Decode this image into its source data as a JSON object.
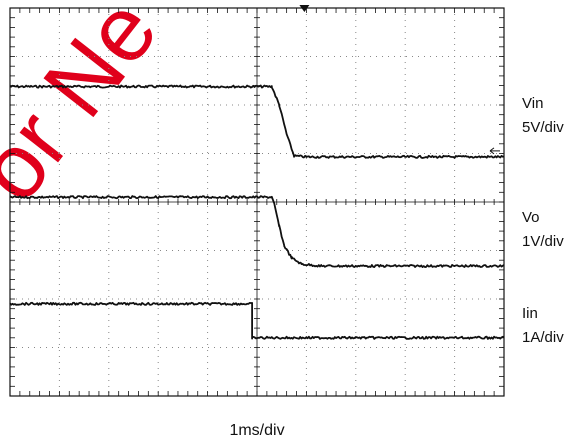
{
  "chart_data": {
    "type": "line",
    "title": "",
    "xlabel": "1ms/div",
    "ylabel": "",
    "grid": true,
    "grid_divisions": {
      "x": 10,
      "y": 8
    },
    "xlim": [
      0,
      10
    ],
    "ylim": [
      0,
      8
    ],
    "x_units": "divisions",
    "y_units": "divisions",
    "trigger_time_div": 6.0,
    "step_time_div": 5.3,
    "watermark": {
      "text": "For Ne",
      "color": "#e0001b"
    },
    "colors": {
      "trace": "#111111",
      "grid": "#888888",
      "frame": "#111111",
      "watermark": "#e0001b"
    },
    "series": [
      {
        "name": "Vin",
        "scale_label": "5V/div",
        "points": [
          [
            0,
            6.38
          ],
          [
            5.3,
            6.38
          ],
          [
            5.45,
            6.0
          ],
          [
            5.6,
            5.4
          ],
          [
            5.75,
            4.95
          ],
          [
            6,
            4.93
          ],
          [
            10,
            4.93
          ]
        ]
      },
      {
        "name": "Vo",
        "scale_label": "1V/div",
        "points": [
          [
            0,
            4.1
          ],
          [
            5.3,
            4.1
          ],
          [
            5.35,
            3.95
          ],
          [
            5.45,
            3.5
          ],
          [
            5.55,
            3.1
          ],
          [
            5.7,
            2.85
          ],
          [
            5.9,
            2.72
          ],
          [
            6.3,
            2.68
          ],
          [
            10,
            2.68
          ]
        ]
      },
      {
        "name": "Iin",
        "scale_label": "1A/div",
        "points": [
          [
            0,
            1.9
          ],
          [
            4.9,
            1.9
          ],
          [
            4.9,
            1.2
          ],
          [
            10,
            1.2
          ]
        ]
      }
    ]
  }
}
